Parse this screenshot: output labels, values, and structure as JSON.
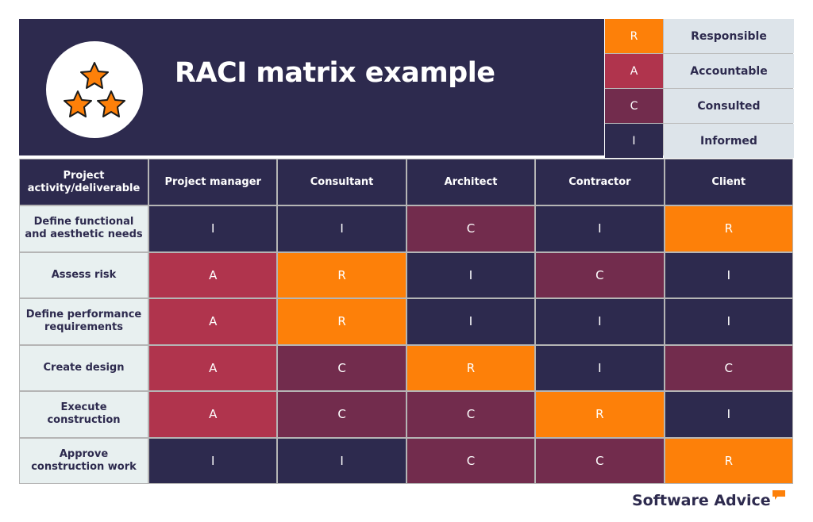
{
  "header": {
    "title": "RACI matrix example",
    "icon": "three-stars-icon"
  },
  "legend": [
    {
      "code": "R",
      "label": "Responsible"
    },
    {
      "code": "A",
      "label": "Accountable"
    },
    {
      "code": "C",
      "label": "Consulted"
    },
    {
      "code": "I",
      "label": "Informed"
    }
  ],
  "colors": {
    "R": "#fd8009",
    "A": "#b0344d",
    "C": "#722c4d",
    "I": "#2d2a4e"
  },
  "matrix": {
    "corner": "Project activity/deliverable",
    "columns": [
      "Project manager",
      "Consultant",
      "Architect",
      "Contractor",
      "Client"
    ],
    "rows": [
      {
        "activity": "Define functional and aesthetic needs",
        "values": [
          "I",
          "I",
          "C",
          "I",
          "R"
        ]
      },
      {
        "activity": "Assess risk",
        "values": [
          "A",
          "R",
          "I",
          "C",
          "I"
        ]
      },
      {
        "activity": "Define performance requirements",
        "values": [
          "A",
          "R",
          "I",
          "I",
          "I"
        ]
      },
      {
        "activity": "Create design",
        "values": [
          "A",
          "C",
          "R",
          "I",
          "C"
        ]
      },
      {
        "activity": "Execute construction",
        "values": [
          "A",
          "C",
          "C",
          "R",
          "I"
        ]
      },
      {
        "activity": "Approve construction work",
        "values": [
          "I",
          "I",
          "C",
          "C",
          "R"
        ]
      }
    ]
  },
  "footer": {
    "brand": "Software Advice"
  }
}
